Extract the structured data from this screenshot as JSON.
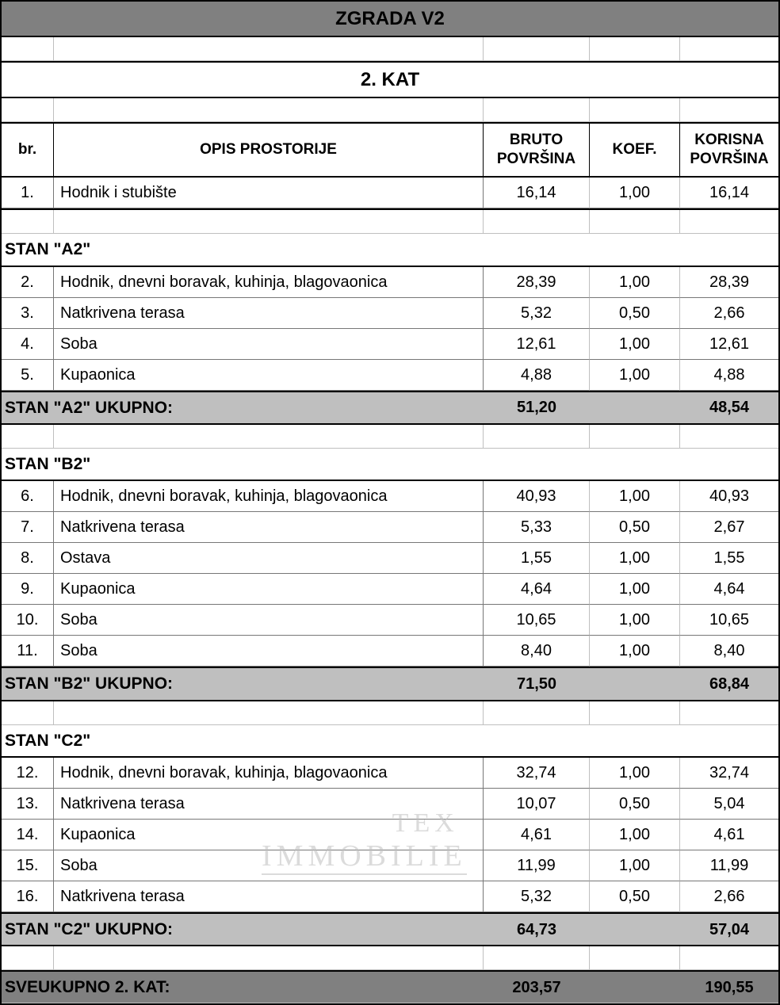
{
  "title_main": "ZGRADA V2",
  "title_sub": "2. KAT",
  "columns": {
    "br": "br.",
    "opis": "OPIS PROSTORIJE",
    "bruto": "BRUTO POVRŠINA",
    "koef": "KOEF.",
    "kor": "KORISNA POVRŠINA"
  },
  "intro_row": {
    "br": "1.",
    "opis": "Hodnik i stubište",
    "bruto": "16,14",
    "koef": "1,00",
    "kor": "16,14"
  },
  "sections": [
    {
      "name": "STAN \"A2\"",
      "rows": [
        {
          "br": "2.",
          "opis": "Hodnik, dnevni boravak, kuhinja, blagovaonica",
          "bruto": "28,39",
          "koef": "1,00",
          "kor": "28,39"
        },
        {
          "br": "3.",
          "opis": "Natkrivena terasa",
          "bruto": "5,32",
          "koef": "0,50",
          "kor": "2,66"
        },
        {
          "br": "4.",
          "opis": "Soba",
          "bruto": "12,61",
          "koef": "1,00",
          "kor": "12,61"
        },
        {
          "br": "5.",
          "opis": "Kupaonica",
          "bruto": "4,88",
          "koef": "1,00",
          "kor": "4,88"
        }
      ],
      "total_label": "STAN \"A2\" UKUPNO:",
      "total_bruto": "51,20",
      "total_kor": "48,54"
    },
    {
      "name": "STAN \"B2\"",
      "rows": [
        {
          "br": "6.",
          "opis": "Hodnik, dnevni boravak, kuhinja, blagovaonica",
          "bruto": "40,93",
          "koef": "1,00",
          "kor": "40,93"
        },
        {
          "br": "7.",
          "opis": "Natkrivena terasa",
          "bruto": "5,33",
          "koef": "0,50",
          "kor": "2,67"
        },
        {
          "br": "8.",
          "opis": "Ostava",
          "bruto": "1,55",
          "koef": "1,00",
          "kor": "1,55"
        },
        {
          "br": "9.",
          "opis": "Kupaonica",
          "bruto": "4,64",
          "koef": "1,00",
          "kor": "4,64"
        },
        {
          "br": "10.",
          "opis": "Soba",
          "bruto": "10,65",
          "koef": "1,00",
          "kor": "10,65"
        },
        {
          "br": "11.",
          "opis": "Soba",
          "bruto": "8,40",
          "koef": "1,00",
          "kor": "8,40"
        }
      ],
      "total_label": "STAN \"B2\" UKUPNO:",
      "total_bruto": "71,50",
      "total_kor": "68,84"
    },
    {
      "name": "STAN \"C2\"",
      "rows": [
        {
          "br": "12.",
          "opis": "Hodnik, dnevni boravak, kuhinja, blagovaonica",
          "bruto": "32,74",
          "koef": "1,00",
          "kor": "32,74"
        },
        {
          "br": "13.",
          "opis": "Natkrivena terasa",
          "bruto": "10,07",
          "koef": "0,50",
          "kor": "5,04"
        },
        {
          "br": "14.",
          "opis": "Kupaonica",
          "bruto": "4,61",
          "koef": "1,00",
          "kor": "4,61"
        },
        {
          "br": "15.",
          "opis": "Soba",
          "bruto": "11,99",
          "koef": "1,00",
          "kor": "11,99"
        },
        {
          "br": "16.",
          "opis": "Natkrivena terasa",
          "bruto": "5,32",
          "koef": "0,50",
          "kor": "2,66"
        }
      ],
      "total_label": "STAN \"C2\" UKUPNO:",
      "total_bruto": "64,73",
      "total_kor": "57,04"
    }
  ],
  "grand": {
    "label": "SVEUKUPNO 2. KAT:",
    "bruto": "203,57",
    "kor": "190,55"
  },
  "watermark": {
    "line1": "TEX",
    "line2": "IMMOBILIE"
  },
  "colors": {
    "header_bg": "#808080",
    "subtotal_bg": "#bfbfbf",
    "border_strong": "#000000",
    "border_light": "#bfbfbf"
  }
}
